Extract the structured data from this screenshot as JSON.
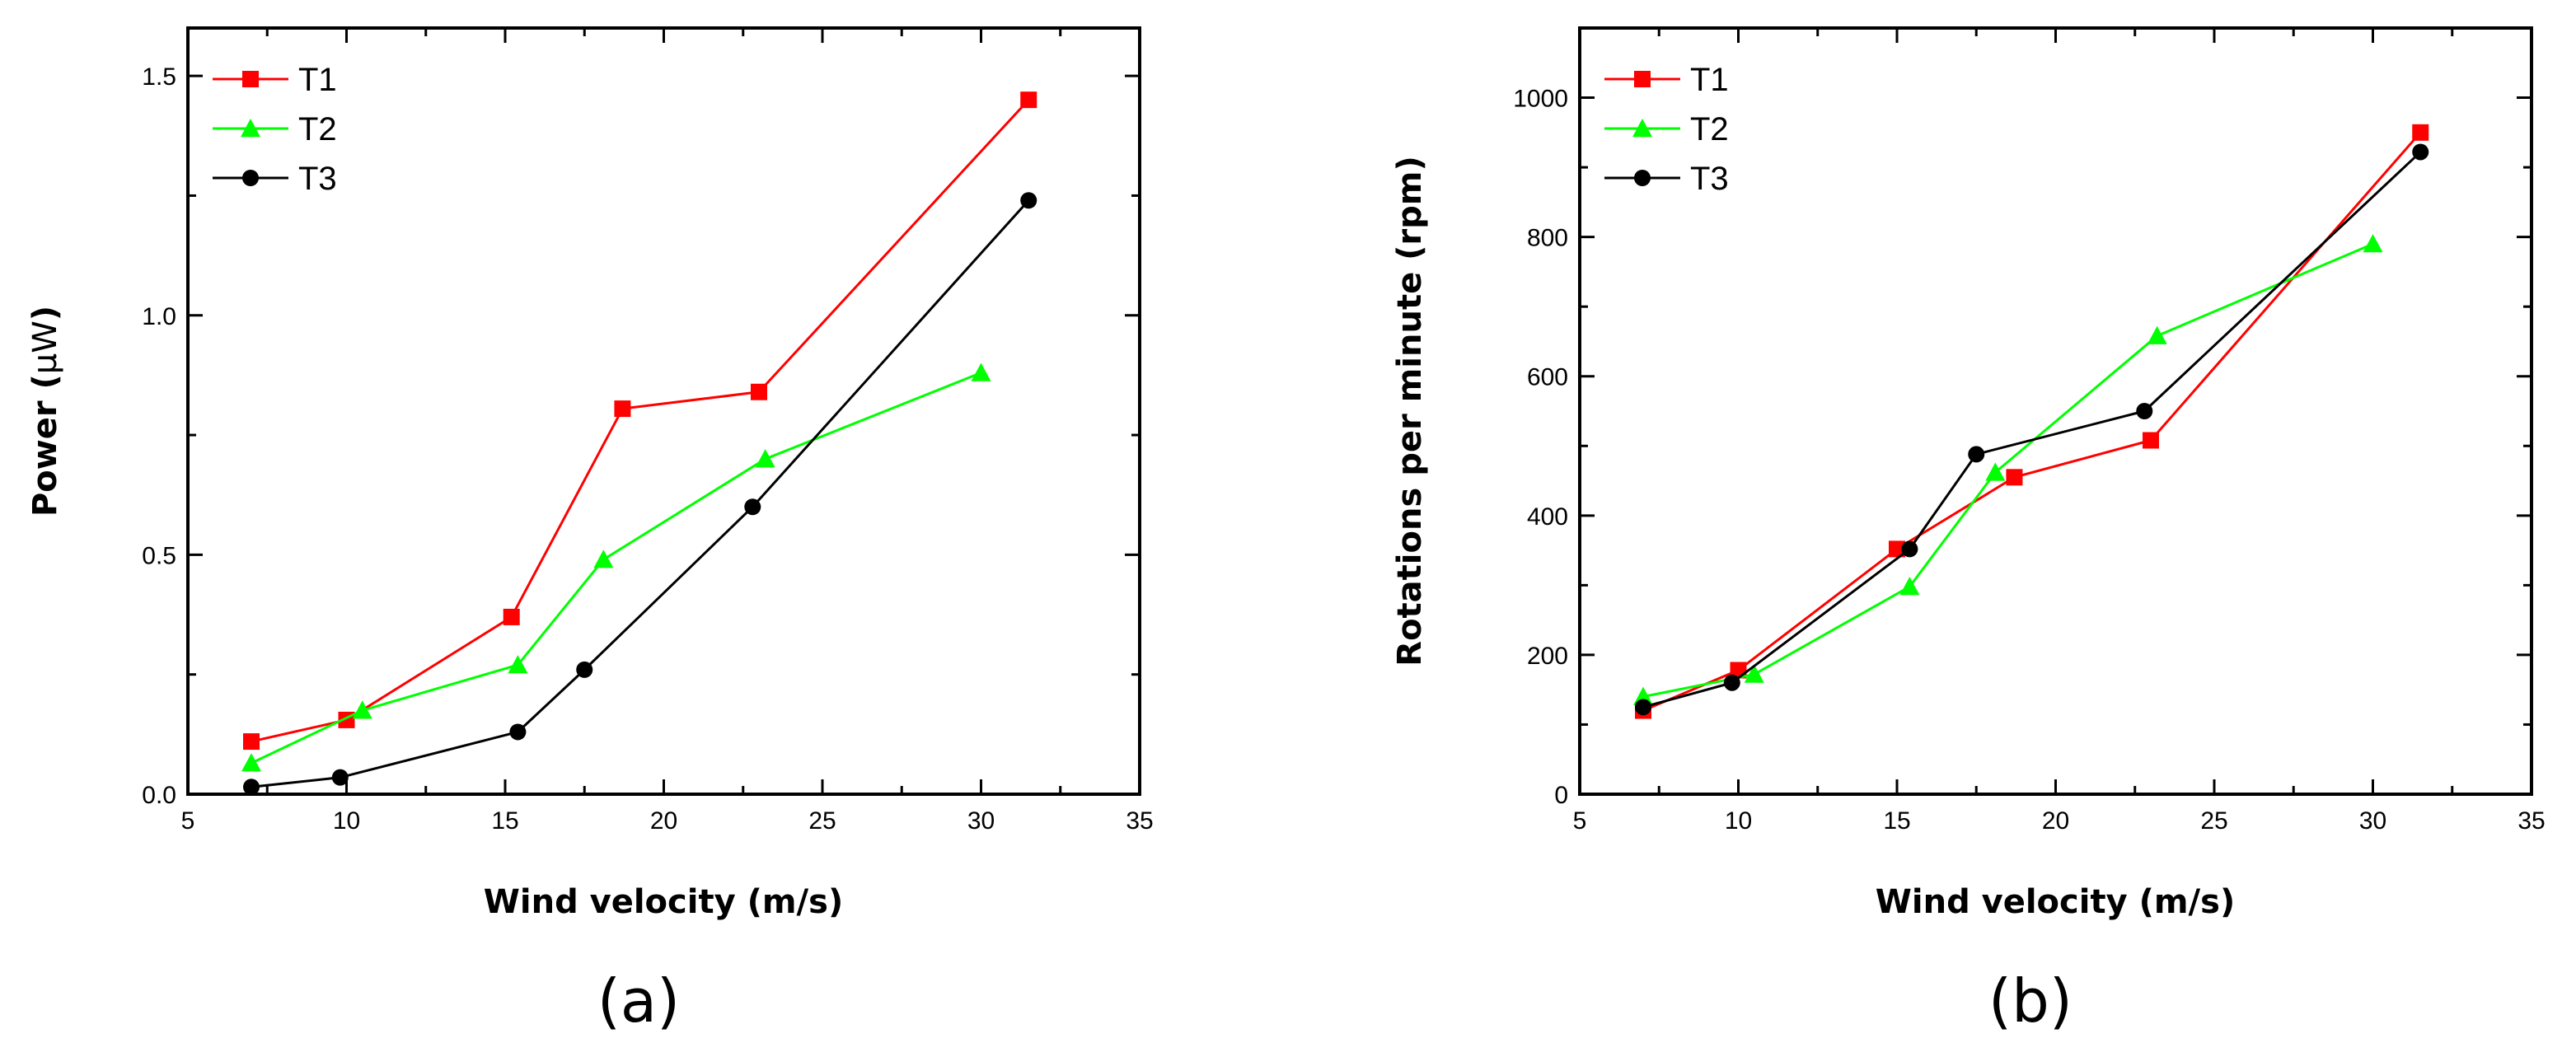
{
  "chart_data": [
    {
      "type": "line",
      "panel_label": "(a)",
      "xlabel": "Wind velocity (m/s)",
      "ylabel_main": "Power (",
      "ylabel_unit": "μW",
      "ylabel_tail": ")",
      "xlim": [
        5,
        35
      ],
      "ylim": [
        0,
        1.6
      ],
      "xticks": [
        5,
        10,
        15,
        20,
        25,
        30,
        35
      ],
      "yticks": [
        0.0,
        0.5,
        1.0,
        1.5
      ],
      "xtick_labels": [
        "5",
        "10",
        "15",
        "20",
        "25",
        "30",
        "35"
      ],
      "ytick_labels": [
        "0.0",
        "0.5",
        "1.0",
        "1.5"
      ],
      "grid": false,
      "legend_position": "top-left",
      "series": [
        {
          "name": "T1",
          "marker": "square",
          "color": "#ff0000",
          "x": [
            7.0,
            10.0,
            15.2,
            18.7,
            23.0,
            31.5
          ],
          "y": [
            0.11,
            0.155,
            0.37,
            0.805,
            0.84,
            1.45
          ]
        },
        {
          "name": "T2",
          "marker": "triangle",
          "color": "#00ff00",
          "x": [
            7.0,
            10.5,
            15.4,
            18.1,
            23.2,
            30.0
          ],
          "y": [
            0.065,
            0.175,
            0.27,
            0.49,
            0.7,
            0.88
          ]
        },
        {
          "name": "T3",
          "marker": "circle",
          "color": "#000000",
          "x": [
            7.0,
            9.8,
            15.4,
            17.5,
            22.8,
            31.5
          ],
          "y": [
            0.015,
            0.035,
            0.13,
            0.26,
            0.6,
            1.24
          ]
        }
      ]
    },
    {
      "type": "line",
      "panel_label": "(b)",
      "xlabel": "Wind velocity (m/s)",
      "ylabel_main": "Rotations per minute (rpm)",
      "xlim": [
        5,
        35
      ],
      "ylim": [
        0,
        1100
      ],
      "xticks": [
        5,
        10,
        15,
        20,
        25,
        30,
        35
      ],
      "yticks": [
        0,
        200,
        400,
        600,
        800,
        1000
      ],
      "xtick_labels": [
        "5",
        "10",
        "15",
        "20",
        "25",
        "30",
        "35"
      ],
      "ytick_labels": [
        "0",
        "200",
        "400",
        "600",
        "800",
        "1000"
      ],
      "grid": false,
      "legend_position": "top-left",
      "series": [
        {
          "name": "T1",
          "marker": "square",
          "color": "#ff0000",
          "x": [
            7.0,
            10.0,
            15.0,
            18.7,
            23.0,
            31.5
          ],
          "y": [
            120,
            178,
            352,
            455,
            508,
            950
          ]
        },
        {
          "name": "T2",
          "marker": "triangle",
          "color": "#00ff00",
          "x": [
            7.0,
            10.5,
            15.4,
            18.1,
            23.2,
            30.0
          ],
          "y": [
            140,
            172,
            298,
            462,
            658,
            790
          ]
        },
        {
          "name": "T3",
          "marker": "circle",
          "color": "#000000",
          "x": [
            7.0,
            9.8,
            15.4,
            17.5,
            22.8,
            31.5
          ],
          "y": [
            125,
            160,
            352,
            488,
            550,
            922
          ]
        }
      ]
    }
  ]
}
